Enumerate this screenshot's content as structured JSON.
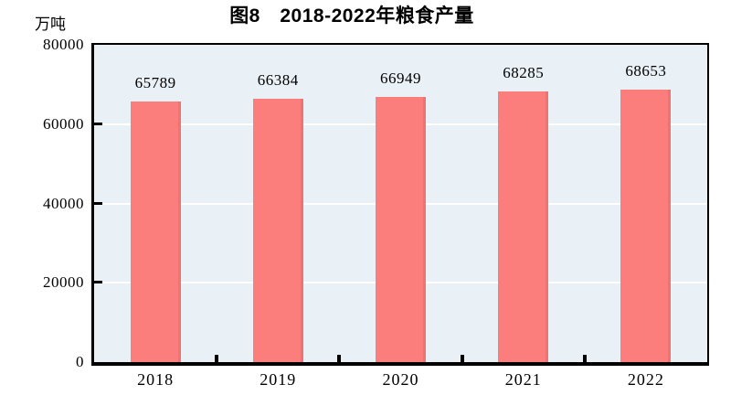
{
  "header": {
    "title": "图8　2018-2022年粮食产量",
    "unit_label": "万吨"
  },
  "chart_data": {
    "type": "bar",
    "title": "图8　2018-2022年粮食产量",
    "categories": [
      "2018",
      "2019",
      "2020",
      "2021",
      "2022"
    ],
    "values": [
      65789,
      66384,
      66949,
      68285,
      68653
    ],
    "bar_labels": [
      "65789",
      "66384",
      "66949",
      "68285",
      "68653"
    ],
    "xlabel": "",
    "ylabel": "万吨",
    "ylim": [
      0,
      80000
    ],
    "y_ticks": [
      0,
      20000,
      40000,
      60000,
      80000
    ],
    "y_tick_labels": [
      "0",
      "20000",
      "40000",
      "60000",
      "80000"
    ],
    "gridlines": "horizontal white lines at 20000, 40000, 60000",
    "legend": "none",
    "colors": {
      "bar": "#FB7D7C",
      "plot_background": "#E9F1F6",
      "gridline": "#FFFFFF",
      "axis": "#000000",
      "text": "#000000"
    }
  }
}
